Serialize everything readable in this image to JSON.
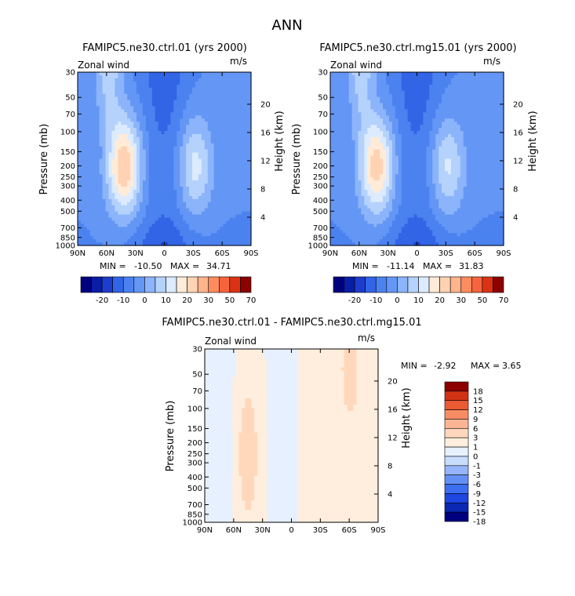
{
  "page_title": "ANN",
  "colors": {
    "full": [
      "#00007f",
      "#0a1ea5",
      "#1e3ccd",
      "#3264e6",
      "#4b82f0",
      "#6496f5",
      "#8cb4fa",
      "#b4d2fc",
      "#dcebff",
      "#ffebd7",
      "#ffd2b4",
      "#ffb48c",
      "#ff8c5f",
      "#f5643c",
      "#dc3214",
      "#8c0000"
    ],
    "diff": [
      "#00007f",
      "#0a28b4",
      "#1e46e1",
      "#3c6ef0",
      "#6490f5",
      "#96b4fa",
      "#c8dcfc",
      "#e6f0ff",
      "#ffeedd",
      "#ffd8bc",
      "#fcb494",
      "#fa8c64",
      "#eb5a32",
      "#d23214",
      "#8c0000"
    ]
  },
  "chart_data": [
    {
      "type": "contour",
      "title": "FAMIPC5.ne30.ctrl.01 (yrs 2000)",
      "left_label": "Zonal wind",
      "units": "m/s",
      "ylabel": "Pressure (mb)",
      "ylabel_right": "Height (km)",
      "x_ticks": [
        "90N",
        "60N",
        "30N",
        "0",
        "30S",
        "60S",
        "90S"
      ],
      "y_ticks": [
        30,
        50,
        70,
        100,
        150,
        200,
        250,
        300,
        400,
        500,
        700,
        850,
        1000
      ],
      "y_right_ticks": [
        20,
        16,
        12,
        8,
        4
      ],
      "ylim": [
        1000,
        30
      ],
      "stats": {
        "min_label": "MIN =",
        "min": "-10.50",
        "max_label": "MAX =",
        "max": "34.71"
      },
      "colorbar_labels": [
        "-20",
        "-10",
        "0",
        "10",
        "20",
        "30",
        "50",
        "70"
      ],
      "jets": [
        {
          "lat": -32,
          "p": 200,
          "peak": 17
        },
        {
          "lat": 42,
          "p": 200,
          "peak": 30
        }
      ]
    },
    {
      "type": "contour",
      "title": "FAMIPC5.ne30.ctrl.mg15.01 (yrs 2000)",
      "left_label": "Zonal wind",
      "units": "m/s",
      "ylabel": "Pressure (mb)",
      "ylabel_right": "Height (km)",
      "x_ticks": [
        "90N",
        "60N",
        "30N",
        "0",
        "30S",
        "60S",
        "90S"
      ],
      "y_ticks": [
        30,
        50,
        70,
        100,
        150,
        200,
        250,
        300,
        400,
        500,
        700,
        850,
        1000
      ],
      "y_right_ticks": [
        20,
        16,
        12,
        8,
        4
      ],
      "ylim": [
        1000,
        30
      ],
      "stats": {
        "min_label": "MIN =",
        "min": "-11.14",
        "max_label": "MAX =",
        "max": "31.83"
      },
      "colorbar_labels": [
        "-20",
        "-10",
        "0",
        "10",
        "20",
        "30",
        "50",
        "70"
      ],
      "jets": [
        {
          "lat": -32,
          "p": 200,
          "peak": 16
        },
        {
          "lat": 42,
          "p": 200,
          "peak": 28
        }
      ]
    },
    {
      "type": "contour",
      "title": "FAMIPC5.ne30.ctrl.01 - FAMIPC5.ne30.ctrl.mg15.01",
      "left_label": "Zonal wind",
      "units": "m/s",
      "ylabel": "Pressure (mb)",
      "ylabel_right": "Height (km)",
      "x_ticks": [
        "90N",
        "60N",
        "30N",
        "0",
        "30S",
        "60S",
        "90S"
      ],
      "y_ticks": [
        30,
        50,
        70,
        100,
        150,
        200,
        250,
        300,
        400,
        500,
        700,
        850,
        1000
      ],
      "y_right_ticks": [
        20,
        16,
        12,
        8,
        4
      ],
      "ylim": [
        1000,
        30
      ],
      "stats": {
        "min_label": "MIN =",
        "min": "-2.92",
        "max_label": "MAX =",
        "max": "3.65"
      },
      "colorbar_labels": [
        "18",
        "15",
        "12",
        "9",
        "6",
        "3",
        "1",
        "0",
        "-1",
        "-3",
        "-6",
        "-9",
        "-12",
        "-15",
        "-18"
      ],
      "colorbar_orientation": "vertical"
    }
  ]
}
